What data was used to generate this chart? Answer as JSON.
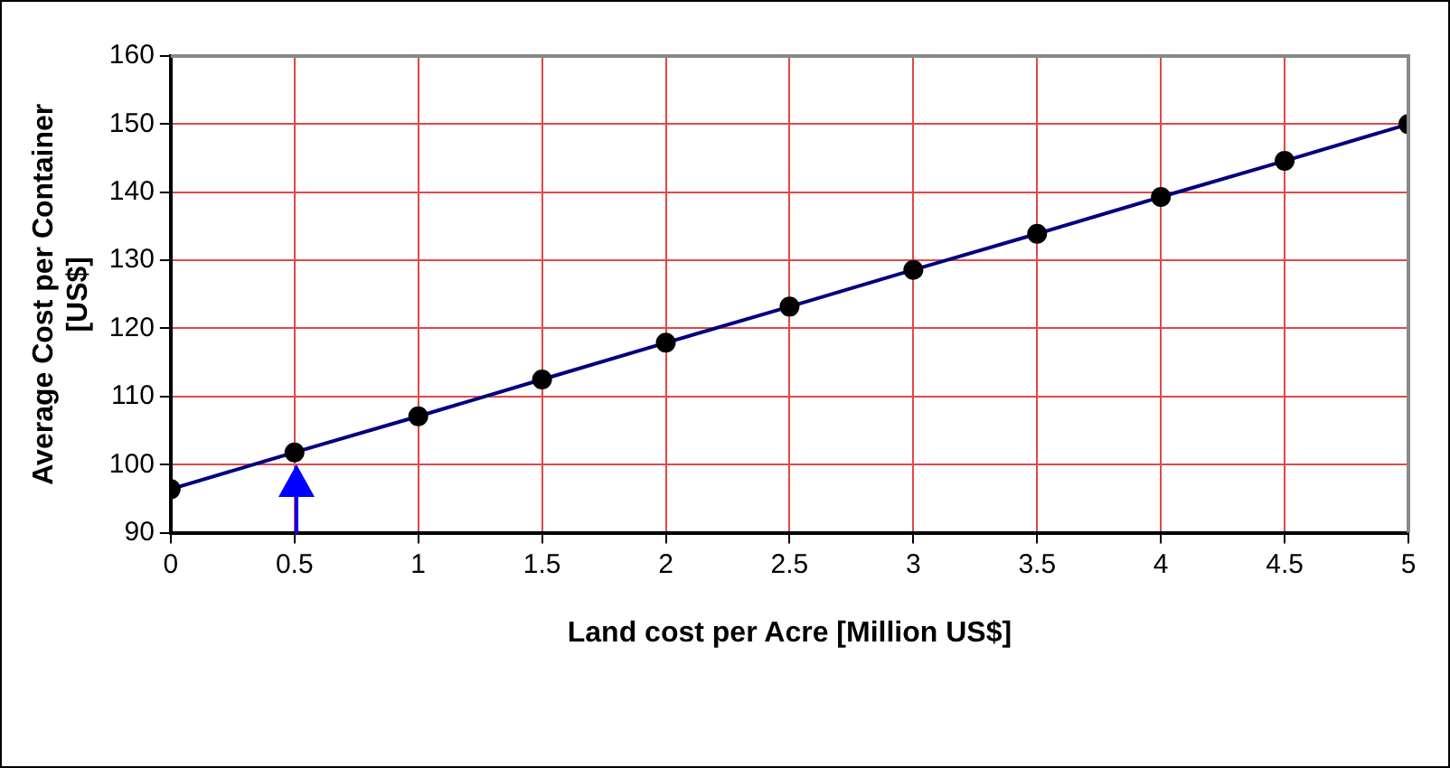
{
  "chart_data": {
    "type": "line",
    "xlabel": "Land cost per Acre [Million US$]",
    "ylabel": "Average Cost per Container [US$]",
    "x": [
      0,
      0.5,
      1,
      1.5,
      2,
      2.5,
      3,
      3.5,
      4,
      4.5,
      5
    ],
    "series": [
      {
        "color": "#000080",
        "values": [
          96.4,
          101.8,
          107.1,
          112.5,
          117.9,
          123.2,
          128.6,
          133.9,
          139.3,
          144.6,
          150.0
        ]
      }
    ],
    "xlim": [
      0,
      5
    ],
    "xticks": [
      0,
      0.5,
      1,
      1.5,
      2,
      2.5,
      3,
      3.5,
      4,
      4.5,
      5
    ],
    "ylim": [
      90,
      160
    ],
    "yticks": [
      90,
      100,
      110,
      120,
      130,
      140,
      150,
      160
    ],
    "grid": true,
    "legend": false,
    "marker": "circle",
    "line_style": "solid"
  }
}
